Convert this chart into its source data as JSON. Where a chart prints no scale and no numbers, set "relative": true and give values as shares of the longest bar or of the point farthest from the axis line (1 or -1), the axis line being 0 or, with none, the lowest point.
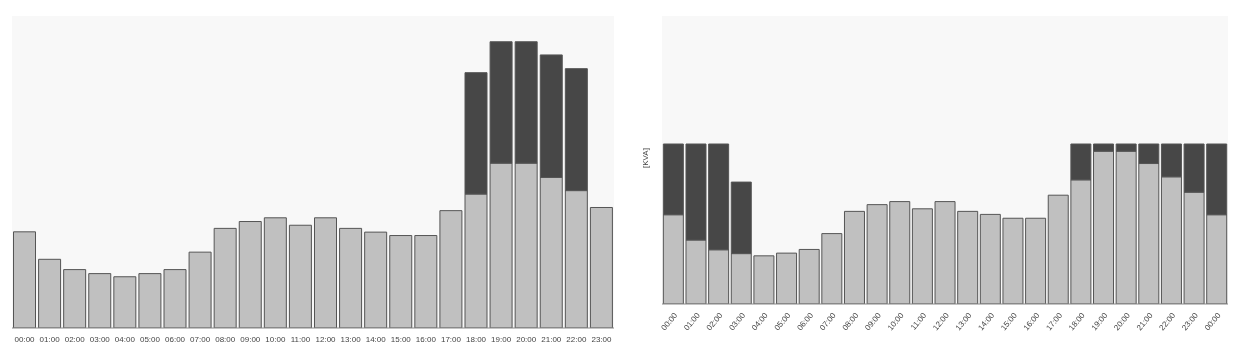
{
  "chart_data": [
    {
      "type": "bar",
      "stacked": true,
      "relative": true,
      "categories": [
        "00:00",
        "01:00",
        "02:00",
        "03:00",
        "04:00",
        "05:00",
        "06:00",
        "07:00",
        "08:00",
        "09:00",
        "10:00",
        "11:00",
        "12:00",
        "13:00",
        "14:00",
        "15:00",
        "16:00",
        "17:00",
        "18:00",
        "19:00",
        "20:00",
        "21:00",
        "22:00",
        "23:00"
      ],
      "grid": false,
      "legend": false,
      "series": [
        {
          "color": "#c0c0c0",
          "values": [
            0.336,
            0.24,
            0.204,
            0.19,
            0.179,
            0.19,
            0.204,
            0.265,
            0.348,
            0.372,
            0.385,
            0.359,
            0.385,
            0.348,
            0.335,
            0.323,
            0.323,
            0.41,
            0.468,
            0.576,
            0.576,
            0.526,
            0.48,
            0.421
          ]
        },
        {
          "color": "#474747",
          "values": [
            null,
            null,
            null,
            null,
            null,
            null,
            null,
            null,
            null,
            null,
            null,
            null,
            null,
            null,
            null,
            null,
            null,
            null,
            0.424,
            0.424,
            0.424,
            0.428,
            0.426,
            null
          ]
        }
      ]
    },
    {
      "type": "bar",
      "stacked": true,
      "relative": true,
      "ylabel": "[KVA]",
      "categories": [
        "00:00",
        "01:00",
        "02:00",
        "03:00",
        "04:00",
        "05:00",
        "06:00",
        "07:00",
        "08:00",
        "09:00",
        "10:00",
        "11:00",
        "12:00",
        "13:00",
        "14:00",
        "15:00",
        "16:00",
        "17:00",
        "18:00",
        "19:00",
        "20:00",
        "21:00",
        "22:00",
        "23:00",
        "00:00"
      ],
      "grid": false,
      "legend": false,
      "series": [
        {
          "color": "#c0c0c0",
          "values": [
            0.558,
            0.4,
            0.339,
            0.315,
            0.301,
            0.318,
            0.341,
            0.44,
            0.579,
            0.621,
            0.64,
            0.595,
            0.64,
            0.579,
            0.56,
            0.536,
            0.536,
            0.68,
            0.776,
            0.955,
            0.955,
            0.878,
            0.795,
            0.699,
            0.558
          ]
        },
        {
          "color": "#474747",
          "values": [
            0.442,
            0.6,
            0.661,
            0.447,
            null,
            null,
            null,
            null,
            null,
            null,
            null,
            null,
            null,
            null,
            null,
            null,
            null,
            null,
            0.224,
            0.045,
            0.045,
            0.122,
            0.205,
            0.301,
            0.442
          ]
        }
      ]
    }
  ]
}
